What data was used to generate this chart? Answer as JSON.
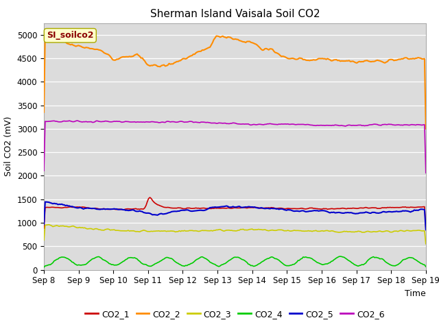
{
  "title": "Sherman Island Vaisala Soil CO2",
  "xlabel": "Time",
  "ylabel": "Soil CO2 (mV)",
  "background_color": "#dcdcdc",
  "annotation_text": "SI_soilco2",
  "annotation_color": "#8b0000",
  "annotation_bg": "#ffffcc",
  "xlim": [
    8,
    19
  ],
  "ylim": [
    0,
    5250
  ],
  "yticks": [
    0,
    500,
    1000,
    1500,
    2000,
    2500,
    3000,
    3500,
    4000,
    4500,
    5000
  ],
  "xtick_positions": [
    8,
    9,
    10,
    11,
    12,
    13,
    14,
    15,
    16,
    17,
    18,
    19
  ],
  "xtick_labels": [
    "Sep 8",
    "Sep 9",
    "Sep 10",
    "Sep 11",
    "Sep 12",
    "Sep 13",
    "Sep 14",
    "Sep 15",
    "Sep 16",
    "Sep 17",
    "Sep 18",
    "Sep 19"
  ],
  "series": {
    "CO2_1": {
      "color": "#cc0000",
      "linewidth": 1.2
    },
    "CO2_2": {
      "color": "#ff8c00",
      "linewidth": 1.5
    },
    "CO2_3": {
      "color": "#cccc00",
      "linewidth": 1.2
    },
    "CO2_4": {
      "color": "#00cc00",
      "linewidth": 1.2
    },
    "CO2_5": {
      "color": "#0000cc",
      "linewidth": 1.5
    },
    "CO2_6": {
      "color": "#bb00bb",
      "linewidth": 1.2
    }
  },
  "legend_colors": [
    "#cc0000",
    "#ff8c00",
    "#cccc00",
    "#00cc00",
    "#0000cc",
    "#bb00bb"
  ],
  "legend_labels": [
    "CO2_1",
    "CO2_2",
    "CO2_3",
    "CO2_4",
    "CO2_5",
    "CO2_6"
  ],
  "title_fontsize": 11,
  "tick_fontsize": 8.5,
  "label_fontsize": 9
}
